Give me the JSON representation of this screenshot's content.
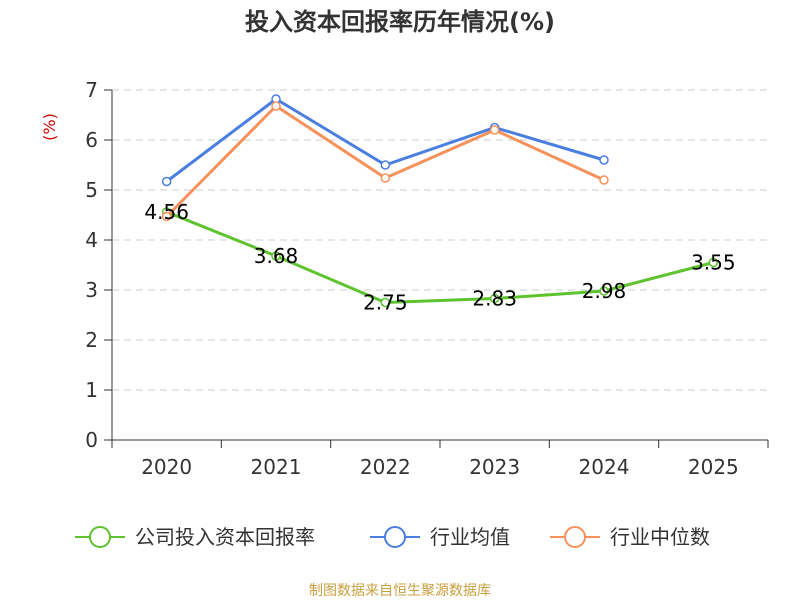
{
  "chart_data": {
    "type": "line",
    "title": "投入资本回报率历年情况(%)",
    "ylabel": "(%)",
    "xlabel": "",
    "categories": [
      "2020",
      "2021",
      "2022",
      "2023",
      "2024",
      "2025"
    ],
    "ylim": [
      0,
      7
    ],
    "yticks": [
      0,
      1,
      2,
      3,
      4,
      5,
      6,
      7
    ],
    "grid": true,
    "legend_position": "bottom",
    "series": [
      {
        "name": "公司投入资本回报率",
        "color": "#5ec32e",
        "values": [
          4.56,
          3.68,
          2.75,
          2.83,
          2.98,
          3.55
        ],
        "labels": [
          "4.56",
          "3.68",
          "2.75",
          "2.83",
          "2.98",
          "3.55"
        ]
      },
      {
        "name": "行业均值",
        "color": "#4a7ee0",
        "values": [
          5.17,
          6.82,
          5.5,
          6.25,
          5.6,
          null
        ]
      },
      {
        "name": "行业中位数",
        "color": "#f5915a",
        "values": [
          4.47,
          6.68,
          5.24,
          6.2,
          5.2,
          null
        ]
      }
    ],
    "source": "制图数据来自恒生聚源数据库"
  }
}
